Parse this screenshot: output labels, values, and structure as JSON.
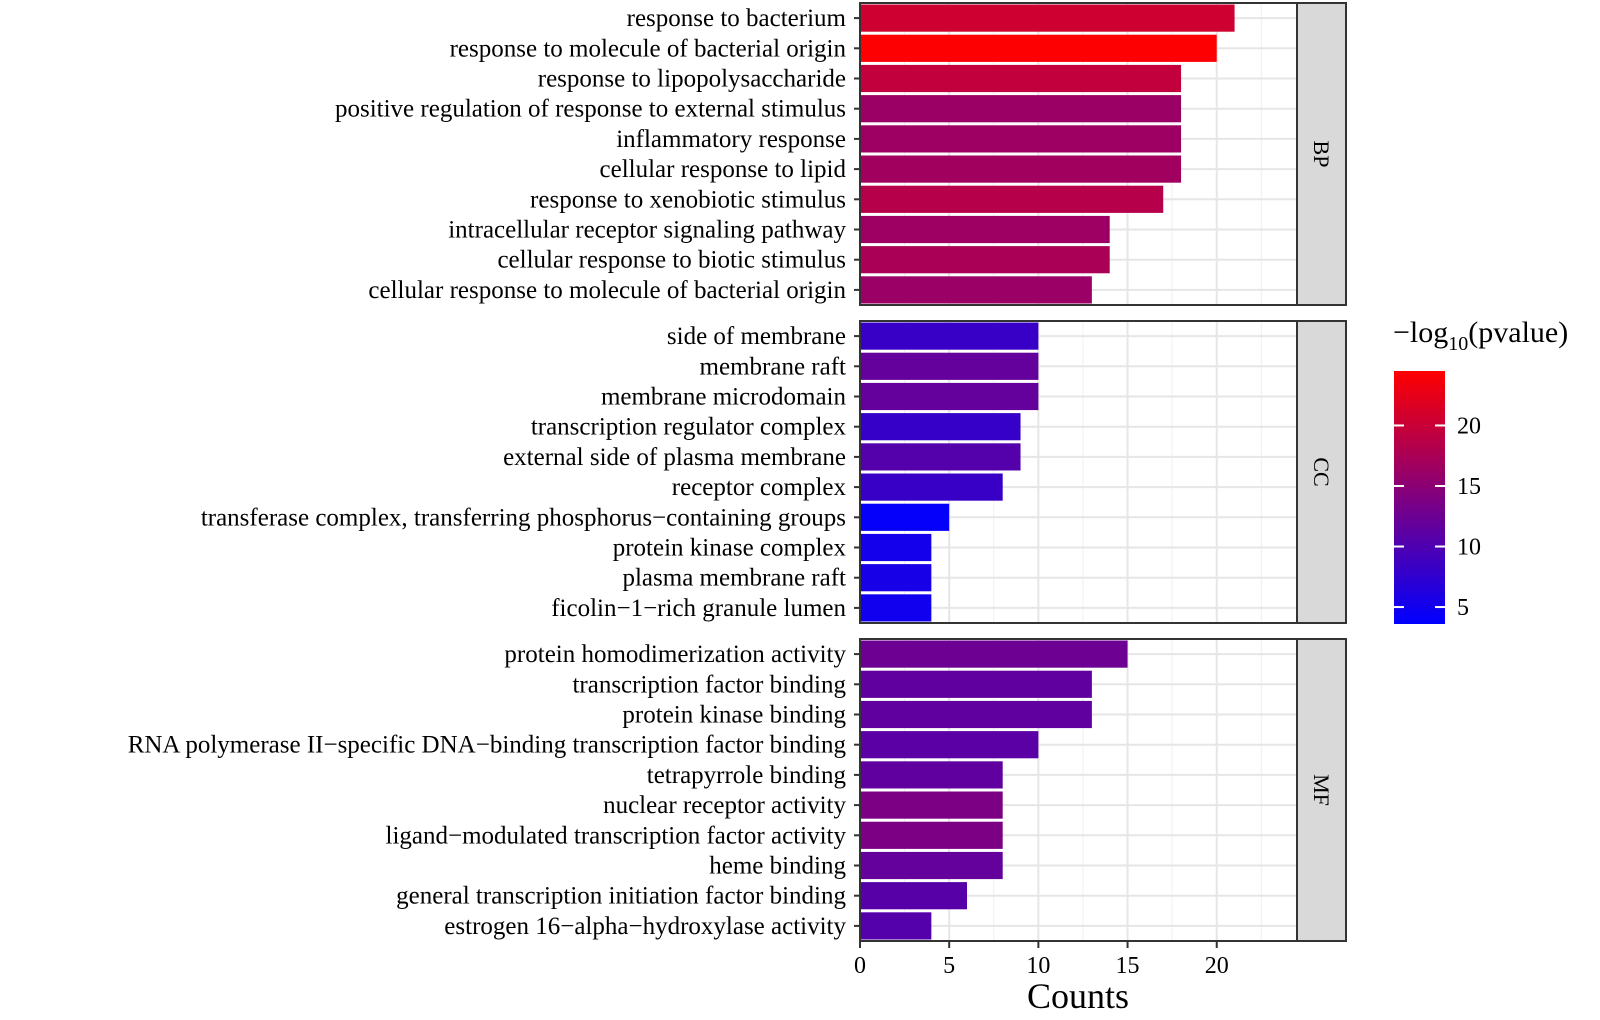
{
  "chart_data": {
    "type": "bar",
    "orientation": "horizontal",
    "faceted": true,
    "xlabel": "Counts",
    "xlim": [
      0,
      24.5
    ],
    "xticks": [
      0,
      5,
      10,
      15,
      20
    ],
    "grid": true,
    "legend": {
      "title_prefix": "−log",
      "title_sub": "10",
      "title_suffix": "(pvalue)",
      "placement": "right",
      "ticks": [
        5,
        10,
        15,
        20
      ],
      "color_low": "#0000FF",
      "color_high": "#FF0000",
      "range": [
        3.6,
        24.5
      ]
    },
    "facets": [
      {
        "name": "BP",
        "categories": [
          "response to bacterium",
          "response to molecule of bacterial origin",
          "response to lipopolysaccharide",
          "positive regulation of response to external stimulus",
          "inflammatory response",
          "cellular response to lipid",
          "response to xenobiotic stimulus",
          "intracellular receptor signaling pathway",
          "cellular response to biotic stimulus",
          "cellular response to molecule of bacterial origin"
        ],
        "values": [
          21,
          20,
          18,
          18,
          18,
          18,
          17,
          14,
          14,
          13
        ],
        "neglog10_pvalue": [
          20.5,
          24.3,
          19.5,
          16.3,
          16.5,
          16.8,
          18.5,
          16.5,
          17.5,
          16.2
        ]
      },
      {
        "name": "CC",
        "categories": [
          "side of membrane",
          "membrane raft",
          "membrane microdomain",
          "transcription regulator complex",
          "external side of plasma membrane",
          "receptor complex",
          "transferase complex, transferring phosphorus−containing groups",
          "protein kinase complex",
          "plasma membrane raft",
          "ficolin−1−rich granule lumen"
        ],
        "values": [
          10,
          10,
          10,
          9,
          9,
          8,
          5,
          4,
          4,
          4
        ],
        "neglog10_pvalue": [
          8.2,
          11.8,
          11.8,
          8.0,
          10.5,
          8.2,
          4.0,
          5.2,
          5.5,
          5.0
        ]
      },
      {
        "name": "MF",
        "categories": [
          "protein homodimerization activity",
          "transcription factor binding",
          "protein kinase binding",
          "RNA polymerase II−specific DNA−binding transcription factor binding",
          "tetrapyrrole binding",
          "nuclear receptor activity",
          "ligand−modulated transcription factor activity",
          "heme binding",
          "general transcription initiation factor binding",
          "estrogen 16−alpha−hydroxylase activity"
        ],
        "values": [
          15,
          13,
          13,
          10,
          8,
          8,
          8,
          8,
          6,
          4
        ],
        "neglog10_pvalue": [
          12.5,
          11.5,
          11.5,
          11.0,
          11.5,
          13.8,
          13.8,
          11.8,
          10.8,
          10.5
        ]
      }
    ]
  }
}
